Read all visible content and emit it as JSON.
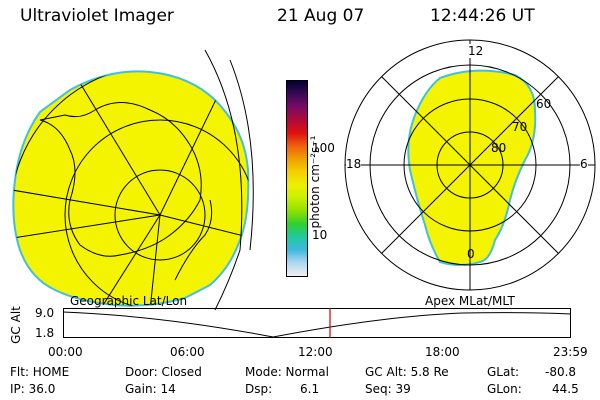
{
  "header": {
    "instrument": "Ultraviolet Imager",
    "date": "21 Aug 07",
    "time": "12:44:26 UT"
  },
  "colorbar": {
    "label": "photon cm⁻²s⁻¹",
    "ticks": [
      "100",
      "10"
    ],
    "colors": [
      "#000033",
      "#3a0a55",
      "#7a0a66",
      "#b00a3a",
      "#e01010",
      "#f06010",
      "#f0a000",
      "#f4d000",
      "#eef000",
      "#c8f000",
      "#90e000",
      "#30d030",
      "#20c8a0",
      "#40b8e0",
      "#b0d8f0",
      "#f0f0f0"
    ]
  },
  "left_map": {
    "title": "Geographic Lat/Lon",
    "fill_color": "#f4f400",
    "edge_color": "#40c0e0"
  },
  "polar_plot": {
    "title": "Apex MLat/MLT",
    "mlt_labels": {
      "top": "12",
      "left": "18",
      "right": "6",
      "bottom": "0"
    },
    "lat_labels": [
      "60",
      "70",
      "80"
    ],
    "fill_color": "#f4f400",
    "edge_color": "#40c0e0"
  },
  "altitude_plot": {
    "ylabel": "GC Alt",
    "yticks": [
      "9.0",
      "1.8"
    ],
    "xticks": [
      "00:00",
      "06:00",
      "12:00",
      "18:00",
      "23:59"
    ],
    "current_time_color": "#d00000"
  },
  "status": {
    "flt": "Flt: HOME",
    "ip": "IP: 36.0",
    "door": "Door: Closed",
    "gain": "Gain: 14",
    "mode": "Mode: Normal",
    "dsp_label": "Dsp:",
    "dsp_value": "6.1",
    "gc_alt": "GC Alt: 5.8 Re",
    "seq": "Seq: 39",
    "glat_label": "GLat:",
    "glat_value": "-80.8",
    "glon_label": "GLon:",
    "glon_value": "44.5"
  }
}
